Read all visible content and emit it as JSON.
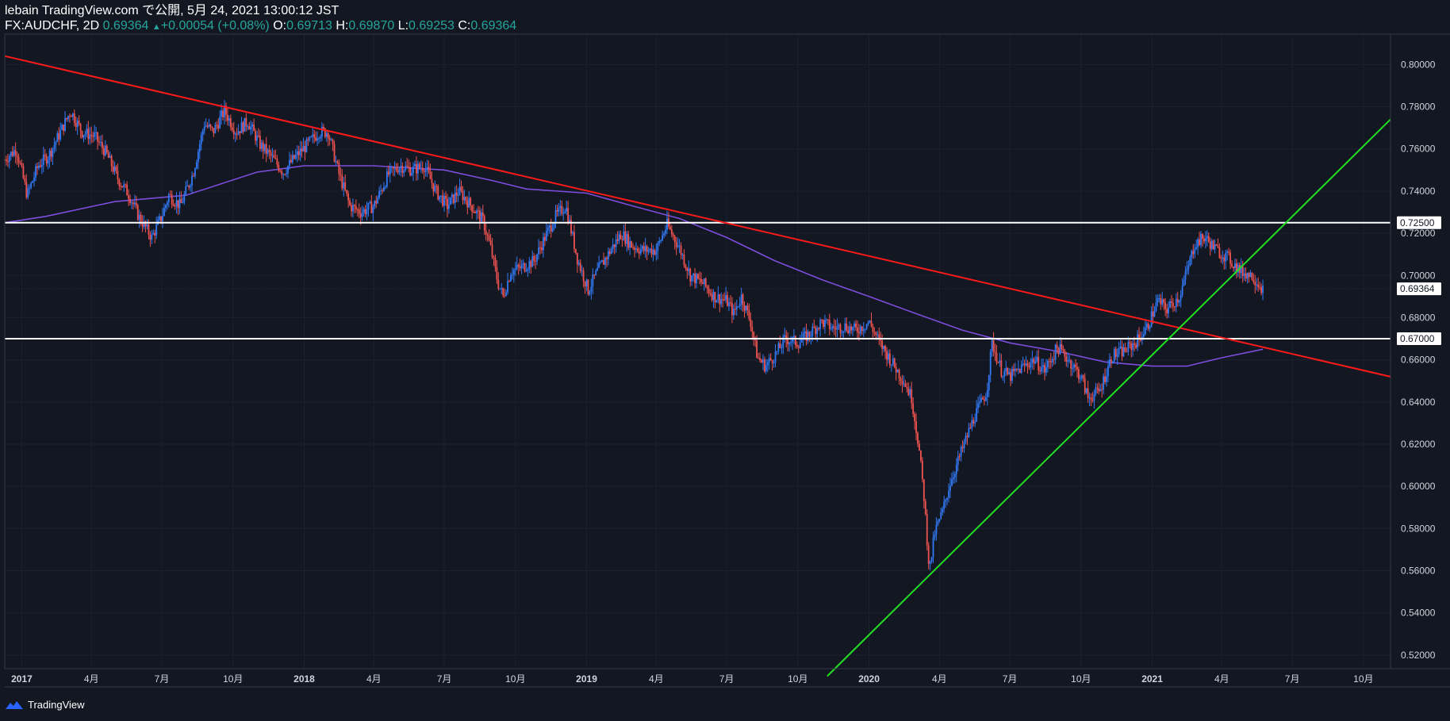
{
  "header": {
    "line1": "lebain TradingView.com で公開, 5月 24, 2021 13:00:12 JST",
    "symbol": "FX:AUDCHF, 2D",
    "last": "0.69364",
    "change_arrow": "▲",
    "change": "+0.00054 (+0.08%)",
    "o_label": "O:",
    "o_value": "0.69713",
    "h_label": "H:",
    "h_value": "0.69870",
    "l_label": "L:",
    "l_value": "0.69253",
    "c_label": "C:",
    "c_value": "0.69364"
  },
  "footer": {
    "brand": "TradingView",
    "logo_icon": "tradingview-logo-icon"
  },
  "colors": {
    "background": "#131722",
    "up": "#3179f5",
    "down": "#ef5350",
    "ma": "#7c4ddb",
    "resistance_line": "#ff1a1a",
    "support_line": "#22e022",
    "level_line": "#ffffff",
    "axis_text": "#d1d4dc",
    "price_tag": "#ffffff"
  },
  "chart_data": {
    "type": "candlestick",
    "symbol": "FX:AUDCHF",
    "interval": "2D",
    "ylim": [
      0.51,
      0.81
    ],
    "y_ticks": [
      "0.52000",
      "0.54000",
      "0.56000",
      "0.58000",
      "0.60000",
      "0.62000",
      "0.64000",
      "0.66000",
      "0.68000",
      "0.70000",
      "0.72000",
      "0.74000",
      "0.76000",
      "0.78000",
      "0.80000"
    ],
    "x_range": [
      "2016-12-10",
      "2021-11-05"
    ],
    "x_ticks": [
      {
        "label": "2017",
        "date": "2017-01-01"
      },
      {
        "label": "4月",
        "date": "2017-04-01"
      },
      {
        "label": "7月",
        "date": "2017-07-01"
      },
      {
        "label": "10月",
        "date": "2017-10-01"
      },
      {
        "label": "2018",
        "date": "2018-01-01"
      },
      {
        "label": "4月",
        "date": "2018-04-01"
      },
      {
        "label": "7月",
        "date": "2018-07-01"
      },
      {
        "label": "10月",
        "date": "2018-10-01"
      },
      {
        "label": "2019",
        "date": "2019-01-01"
      },
      {
        "label": "4月",
        "date": "2019-04-01"
      },
      {
        "label": "7月",
        "date": "2019-07-01"
      },
      {
        "label": "10月",
        "date": "2019-10-01"
      },
      {
        "label": "2020",
        "date": "2020-01-01"
      },
      {
        "label": "4月",
        "date": "2020-04-01"
      },
      {
        "label": "7月",
        "date": "2020-07-01"
      },
      {
        "label": "10月",
        "date": "2020-10-01"
      },
      {
        "label": "2021",
        "date": "2021-01-01"
      },
      {
        "label": "4月",
        "date": "2021-04-01"
      },
      {
        "label": "7月",
        "date": "2021-07-01"
      },
      {
        "label": "10月",
        "date": "2021-10-01"
      }
    ],
    "last_price": {
      "value": 0.69364,
      "label": "0.69364"
    },
    "horizontal_levels": [
      {
        "value": 0.725,
        "label": "0.72500"
      },
      {
        "value": 0.67,
        "label": "0.67000"
      }
    ],
    "trendlines": [
      {
        "name": "resistance",
        "points": [
          [
            "2016-12-10",
            0.804
          ],
          [
            "2021-11-05",
            0.652
          ]
        ]
      },
      {
        "name": "support",
        "points": [
          [
            "2019-11-08",
            0.51
          ],
          [
            "2021-11-05",
            0.774
          ]
        ]
      }
    ],
    "price_path": [
      [
        "2016-12-10",
        0.755
      ],
      [
        "2016-12-25",
        0.76
      ],
      [
        "2017-01-08",
        0.738
      ],
      [
        "2017-01-22",
        0.752
      ],
      [
        "2017-02-05",
        0.757
      ],
      [
        "2017-02-20",
        0.768
      ],
      [
        "2017-03-05",
        0.778
      ],
      [
        "2017-03-20",
        0.768
      ],
      [
        "2017-04-05",
        0.766
      ],
      [
        "2017-04-20",
        0.758
      ],
      [
        "2017-05-05",
        0.746
      ],
      [
        "2017-05-20",
        0.738
      ],
      [
        "2017-06-01",
        0.728
      ],
      [
        "2017-06-18",
        0.718
      ],
      [
        "2017-07-01",
        0.728
      ],
      [
        "2017-07-10",
        0.738
      ],
      [
        "2017-07-25",
        0.733
      ],
      [
        "2017-08-10",
        0.748
      ],
      [
        "2017-08-25",
        0.772
      ],
      [
        "2017-09-05",
        0.768
      ],
      [
        "2017-09-20",
        0.778
      ],
      [
        "2017-10-05",
        0.768
      ],
      [
        "2017-10-20",
        0.773
      ],
      [
        "2017-11-05",
        0.762
      ],
      [
        "2017-11-20",
        0.756
      ],
      [
        "2017-12-05",
        0.749
      ],
      [
        "2017-12-20",
        0.756
      ],
      [
        "2018-01-05",
        0.762
      ],
      [
        "2018-01-20",
        0.768
      ],
      [
        "2018-02-01",
        0.768
      ],
      [
        "2018-02-15",
        0.748
      ],
      [
        "2018-03-01",
        0.733
      ],
      [
        "2018-03-15",
        0.73
      ],
      [
        "2018-04-01",
        0.733
      ],
      [
        "2018-04-20",
        0.748
      ],
      [
        "2018-05-05",
        0.752
      ],
      [
        "2018-05-20",
        0.75
      ],
      [
        "2018-06-05",
        0.752
      ],
      [
        "2018-06-20",
        0.74
      ],
      [
        "2018-07-05",
        0.733
      ],
      [
        "2018-07-20",
        0.74
      ],
      [
        "2018-08-05",
        0.733
      ],
      [
        "2018-08-20",
        0.726
      ],
      [
        "2018-08-30",
        0.713
      ],
      [
        "2018-09-08",
        0.697
      ],
      [
        "2018-09-15",
        0.69
      ],
      [
        "2018-09-25",
        0.702
      ],
      [
        "2018-10-10",
        0.704
      ],
      [
        "2018-10-25",
        0.707
      ],
      [
        "2018-11-08",
        0.718
      ],
      [
        "2018-11-22",
        0.728
      ],
      [
        "2018-12-05",
        0.733
      ],
      [
        "2018-12-20",
        0.708
      ],
      [
        "2019-01-03",
        0.693
      ],
      [
        "2019-01-15",
        0.702
      ],
      [
        "2019-02-01",
        0.712
      ],
      [
        "2019-02-15",
        0.72
      ],
      [
        "2019-03-01",
        0.714
      ],
      [
        "2019-03-15",
        0.712
      ],
      [
        "2019-04-01",
        0.712
      ],
      [
        "2019-04-15",
        0.724
      ],
      [
        "2019-05-01",
        0.713
      ],
      [
        "2019-05-15",
        0.7
      ],
      [
        "2019-06-01",
        0.696
      ],
      [
        "2019-06-15",
        0.69
      ],
      [
        "2019-07-01",
        0.688
      ],
      [
        "2019-07-10",
        0.682
      ],
      [
        "2019-07-20",
        0.69
      ],
      [
        "2019-08-01",
        0.678
      ],
      [
        "2019-08-10",
        0.661
      ],
      [
        "2019-08-20",
        0.657
      ],
      [
        "2019-09-01",
        0.662
      ],
      [
        "2019-09-15",
        0.67
      ],
      [
        "2019-10-01",
        0.668
      ],
      [
        "2019-10-15",
        0.672
      ],
      [
        "2019-11-01",
        0.678
      ],
      [
        "2019-11-15",
        0.675
      ],
      [
        "2019-12-01",
        0.676
      ],
      [
        "2019-12-15",
        0.674
      ],
      [
        "2020-01-01",
        0.678
      ],
      [
        "2020-01-15",
        0.668
      ],
      [
        "2020-02-01",
        0.658
      ],
      [
        "2020-02-15",
        0.65
      ],
      [
        "2020-02-25",
        0.642
      ],
      [
        "2020-03-05",
        0.62
      ],
      [
        "2020-03-12",
        0.595
      ],
      [
        "2020-03-19",
        0.56
      ],
      [
        "2020-03-26",
        0.578
      ],
      [
        "2020-04-05",
        0.588
      ],
      [
        "2020-04-15",
        0.602
      ],
      [
        "2020-05-01",
        0.618
      ],
      [
        "2020-05-15",
        0.632
      ],
      [
        "2020-06-01",
        0.645
      ],
      [
        "2020-06-08",
        0.668
      ],
      [
        "2020-06-20",
        0.655
      ],
      [
        "2020-07-01",
        0.652
      ],
      [
        "2020-07-15",
        0.656
      ],
      [
        "2020-08-01",
        0.66
      ],
      [
        "2020-08-15",
        0.655
      ],
      [
        "2020-09-01",
        0.666
      ],
      [
        "2020-09-15",
        0.66
      ],
      [
        "2020-10-01",
        0.652
      ],
      [
        "2020-10-10",
        0.642
      ],
      [
        "2020-10-25",
        0.645
      ],
      [
        "2020-11-10",
        0.662
      ],
      [
        "2020-11-25",
        0.664
      ],
      [
        "2020-12-10",
        0.668
      ],
      [
        "2020-12-25",
        0.675
      ],
      [
        "2021-01-08",
        0.688
      ],
      [
        "2021-01-20",
        0.684
      ],
      [
        "2021-02-05",
        0.69
      ],
      [
        "2021-02-15",
        0.702
      ],
      [
        "2021-02-25",
        0.715
      ],
      [
        "2021-03-10",
        0.718
      ],
      [
        "2021-03-25",
        0.712
      ],
      [
        "2021-04-10",
        0.708
      ],
      [
        "2021-04-25",
        0.702
      ],
      [
        "2021-05-10",
        0.7
      ],
      [
        "2021-05-24",
        0.69364
      ]
    ],
    "ma_path": [
      [
        "2016-12-10",
        0.725
      ],
      [
        "2017-02-01",
        0.728
      ],
      [
        "2017-05-01",
        0.735
      ],
      [
        "2017-08-01",
        0.738
      ],
      [
        "2017-11-01",
        0.749
      ],
      [
        "2018-01-01",
        0.752
      ],
      [
        "2018-04-01",
        0.752
      ],
      [
        "2018-07-01",
        0.75
      ],
      [
        "2018-09-01",
        0.745
      ],
      [
        "2018-10-15",
        0.741
      ],
      [
        "2019-01-01",
        0.739
      ],
      [
        "2019-03-01",
        0.733
      ],
      [
        "2019-05-01",
        0.727
      ],
      [
        "2019-07-01",
        0.718
      ],
      [
        "2019-09-01",
        0.707
      ],
      [
        "2019-11-01",
        0.698
      ],
      [
        "2020-01-01",
        0.69
      ],
      [
        "2020-03-01",
        0.682
      ],
      [
        "2020-05-01",
        0.674
      ],
      [
        "2020-07-01",
        0.668
      ],
      [
        "2020-09-01",
        0.664
      ],
      [
        "2020-11-01",
        0.659
      ],
      [
        "2021-01-01",
        0.657
      ],
      [
        "2021-02-15",
        0.657
      ],
      [
        "2021-04-01",
        0.661
      ],
      [
        "2021-05-24",
        0.665
      ]
    ]
  }
}
